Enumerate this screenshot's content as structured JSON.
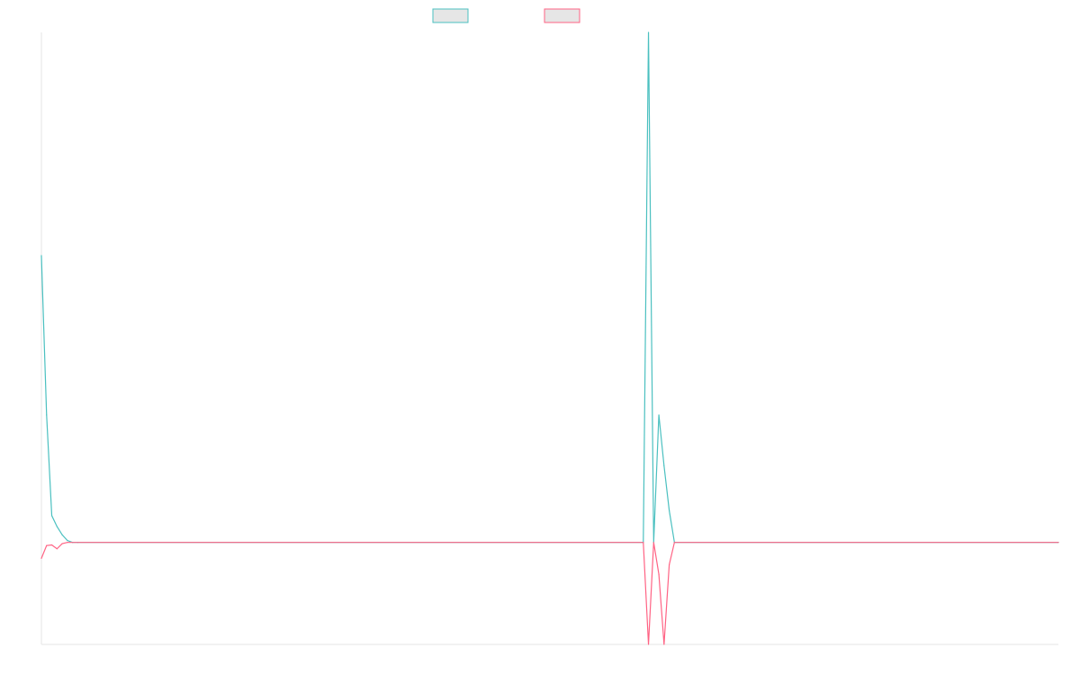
{
  "chart_data": {
    "type": "line",
    "title": "",
    "xlabel": "",
    "ylabel": "",
    "grid": false,
    "legend_placement": "top-center",
    "ylim": [
      -16,
      80
    ],
    "xlim": [
      0,
      196
    ],
    "series": [
      {
        "color": "#4bc0c0",
        "fill_color": "#e6e6e6",
        "points": [
          [
            0,
            45
          ],
          [
            1,
            20
          ],
          [
            2,
            4.2
          ],
          [
            3,
            2.5
          ],
          [
            4,
            1.2
          ],
          [
            5,
            0.3
          ],
          [
            6,
            0
          ],
          [
            7,
            0
          ],
          [
            116,
            0
          ],
          [
            117,
            80
          ],
          [
            118,
            0
          ],
          [
            119,
            20
          ],
          [
            120,
            12
          ],
          [
            121,
            5
          ],
          [
            122,
            0
          ],
          [
            196,
            0
          ]
        ]
      },
      {
        "color": "#ff6384",
        "fill_color": "#e6e6e6",
        "points": [
          [
            0,
            -2.5
          ],
          [
            1,
            -0.5
          ],
          [
            2,
            -0.4
          ],
          [
            3,
            -1
          ],
          [
            4,
            -0.2
          ],
          [
            5,
            0
          ],
          [
            6,
            0
          ],
          [
            7,
            0
          ],
          [
            116,
            0
          ],
          [
            117,
            -16
          ],
          [
            118,
            0
          ],
          [
            119,
            -5
          ],
          [
            120,
            -16
          ],
          [
            121,
            -3.5
          ],
          [
            122,
            0
          ],
          [
            196,
            0
          ]
        ]
      }
    ]
  }
}
